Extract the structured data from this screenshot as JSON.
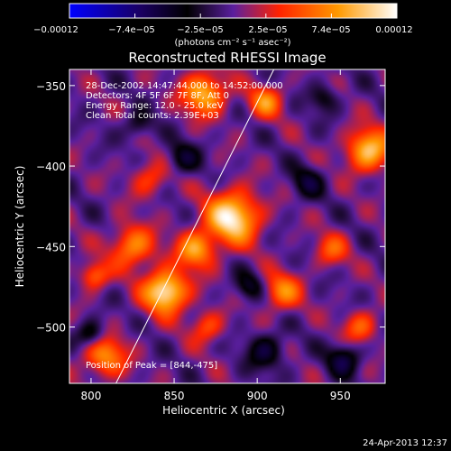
{
  "colorbar": {
    "ticks": [
      "−0.00012",
      "−7.4e−05",
      "−2.5e−05",
      "2.5e−05",
      "7.4e−05",
      "0.00012"
    ],
    "unit_label": "(photons cm⁻² s⁻¹ asec⁻²)",
    "colors": [
      "#0000ff",
      "#1a0060",
      "#000000",
      "#5a1f9e",
      "#ff2200",
      "#ff9900",
      "#ffffff"
    ]
  },
  "chart_data": {
    "type": "heatmap",
    "title": "Reconstructed RHESSI Image",
    "xlabel": "Heliocentric X (arcsec)",
    "ylabel": "Heliocentric Y (arcsec)",
    "xlim": [
      787,
      977
    ],
    "ylim": [
      -535,
      -340
    ],
    "x_ticks": [
      {
        "value": 800,
        "label": "800"
      },
      {
        "value": 850,
        "label": "850"
      },
      {
        "value": 900,
        "label": "900"
      },
      {
        "value": 950,
        "label": "950"
      }
    ],
    "y_ticks": [
      {
        "value": -350,
        "label": "−350"
      },
      {
        "value": -400,
        "label": "−400"
      },
      {
        "value": -450,
        "label": "−450"
      },
      {
        "value": -500,
        "label": "−500"
      }
    ],
    "colorbar_range": [
      -0.00012,
      0.00012
    ],
    "annotations": [
      "28-Dec-2002 14:47:44.000 to 14:52:00.000",
      "Detectors: 4F 5F 6F 7F 8F, Att 0",
      "Energy Range: 12.0 - 25.0 keV",
      "Clean     Total counts: 2.39E+03"
    ],
    "peak_label": "Position of Peak = [844,-475]",
    "peak": {
      "x": 844,
      "y": -475
    },
    "limb_line": [
      {
        "x": 815,
        "y": -535
      },
      {
        "x": 910,
        "y": -340
      }
    ],
    "sources": [
      {
        "x": 845,
        "y": -478,
        "amp": 1.0,
        "s": 9
      },
      {
        "x": 885,
        "y": -432,
        "amp": 0.95,
        "s": 11
      },
      {
        "x": 863,
        "y": -452,
        "amp": 0.65,
        "s": 8
      },
      {
        "x": 825,
        "y": -450,
        "amp": 0.6,
        "s": 9
      },
      {
        "x": 802,
        "y": -468,
        "amp": 0.5,
        "s": 6
      },
      {
        "x": 808,
        "y": -518,
        "amp": 0.6,
        "s": 9
      },
      {
        "x": 868,
        "y": -355,
        "amp": 0.75,
        "s": 9
      },
      {
        "x": 905,
        "y": -360,
        "amp": 0.55,
        "s": 7
      },
      {
        "x": 967,
        "y": -390,
        "amp": 0.8,
        "s": 9
      },
      {
        "x": 915,
        "y": -478,
        "amp": 0.55,
        "s": 8
      },
      {
        "x": 945,
        "y": -452,
        "amp": 0.4,
        "s": 7
      },
      {
        "x": 962,
        "y": -500,
        "amp": 0.45,
        "s": 7
      },
      {
        "x": 870,
        "y": -500,
        "amp": 0.4,
        "s": 7
      },
      {
        "x": 835,
        "y": -408,
        "amp": 0.35,
        "s": 8
      },
      {
        "x": 800,
        "y": -505,
        "amp": -0.45,
        "s": 6
      },
      {
        "x": 855,
        "y": -395,
        "amp": -0.35,
        "s": 7
      },
      {
        "x": 930,
        "y": -410,
        "amp": -0.35,
        "s": 7
      },
      {
        "x": 905,
        "y": -515,
        "amp": -0.4,
        "s": 8
      },
      {
        "x": 952,
        "y": -520,
        "amp": -0.45,
        "s": 7
      },
      {
        "x": 940,
        "y": -358,
        "amp": -0.3,
        "s": 6
      },
      {
        "x": 895,
        "y": -475,
        "amp": -0.35,
        "s": 6
      },
      {
        "x": 828,
        "y": -375,
        "amp": -0.3,
        "s": 6
      }
    ]
  },
  "footer": {
    "timestamp": "24-Apr-2013 12:37"
  }
}
